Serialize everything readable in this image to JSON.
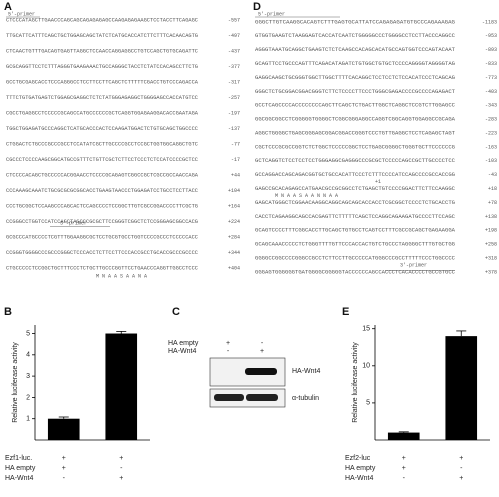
{
  "panel_a": {
    "label": "A",
    "primer_top": "5'-primer",
    "primer_mid": "3'-primer",
    "aa": "M  N  A  A  S  A  A  N  A",
    "rows": [
      {
        "seq": "CTCCCATAGCTTGAACCCAGCAGCAGAGAGAGCCAAGAGAGAAGCTCCTACCTTCAGAGC",
        "pos": "-557"
      },
      {
        "seq": "TTGCATTCATTTCAGCTGCTGGAGCAGCTATCTCATGCACCATCTTCTTTCACAACAGTG",
        "pos": "-497"
      },
      {
        "seq": "CTCAACTGTTTGACAGTGAGTTAGGCTCCAACCAGGAGGCCTGTCCAGCTGTGCAGATTC",
        "pos": "-437"
      },
      {
        "seq": "GCGCAGGTTCCTCTTTAGGGTGAAGAAACTGCCAGGGCTACCTCTATCCACAGCCTTCTG",
        "pos": "-377"
      },
      {
        "seq": "GCCTGCGAGCACCTCCCAGGGCCTCCTTCCTTCAGCTCTTTTTCGACCTGTCCCAGACCA",
        "pos": "-317"
      },
      {
        "seq": "TTTCTGTGATGAGTCTGGAGCGAGGCTCTCTATGGGAGAGGCTGGGGAGCCACCATGTCC",
        "pos": "-257"
      },
      {
        "seq": "CGCCTGAGGCCTCCCCCGCAGCCATGCCCCCCGCTCAGGTGGAGAAGGACACCGAATAGA",
        "pos": "-197"
      },
      {
        "seq": "TGGCTGGAGATGCCCAGGCTCATGCACCCACTCCAAGATGGACTCTGTGCAGCTGGCCCC",
        "pos": "-137"
      },
      {
        "seq": "CTGGACTCTGCCCGCCCGCCTCCATATCGCTTGCCCCGCCTCCGCTGGTGGCAGGCTGTC",
        "pos": "-77"
      },
      {
        "seq": "CGCCCTCCCCAAGCGGCATGCCGTTTCTGTTCGCTCTTCCTCCCTCTCCATCCCCGCTCC",
        "pos": "-17"
      },
      {
        "seq": "CTCCCCACAGCTGCCCCCACGGAACCTCCCCGCAGAGTCGGCCGCTCGCCGCCAACCAGA",
        "pos": "+44"
      },
      {
        "seq": "CCCAAAGCAAATCTGCGCGCGCGGCACCTGAAGTAACCCTGGAGATCCTGCCTCCTTACC",
        "pos": "+104"
      },
      {
        "seq": "CCCTGCGGCTCCAAGCCCAGCACTCCAGCCCCTCCGGCTTGTCGCCGGACCCCTTCGCTG",
        "pos": "+164"
      },
      {
        "seq": "CCGGGCCTGGTCCATCCAGCTAGCCCGCGCTTCCGGGTCGGCTCTCCGGGAGCGGCCACG",
        "pos": "+224"
      },
      {
        "seq": "GCGCCCATGCCCCTCGTTTGGAAGGCGCTCCTGCGTGCCTGGTCCCCGCCCTCCCCCACC",
        "pos": "+284"
      },
      {
        "seq": "CCGGGTGGGGCCCGCCCGGGCTCCCACCTCTTCCTTCCCACCGCCTGCACCGCCCGCCCC",
        "pos": "+344"
      },
      {
        "seq": "CTGCCCCCTCCGGCTGCTTTCCCTCTGCTTGCCCGGTTCCTGAACCCAGGTTGGCCTCCC",
        "pos": "+404"
      }
    ]
  },
  "panel_d": {
    "label": "D",
    "primer_top": "5'-primer",
    "primer_bottom": "3'-primer",
    "start": "+1",
    "aa": "M  N  A  A  S  A  A  N  N  A  A",
    "rows": [
      {
        "seq": "GGGCTTGTCAAGGCACAGTCTTTGAGTGCATTATCCAGAGAGATGTGCCCAGAAAGAG",
        "pos": "-1183"
      },
      {
        "seq": "GTGGTGAAGTCTAAGGAGTCACCATCAATCTGGGGGCCCTGGGGCCTCCTTACCCAGGCC",
        "pos": "-953"
      },
      {
        "seq": "AGGGTAAATGCAGGCTGAAGTCTCTCAAGCCACAGCACATGCCAGTGGTCCCAGTACAAT",
        "pos": "-893"
      },
      {
        "seq": "GCAGTTCCTGCCCAGTTTCAGACATAGATCTGTGGCTGTGCTCCCCAGGGGTAGGGGTAG",
        "pos": "-833"
      },
      {
        "seq": "GAGGCAAGCTGCGGGTGGCTTGGCTTTTCACAGGCTCCTCCTCTCCACATCCCTCAGCAG",
        "pos": "-773"
      },
      {
        "seq": "GGGCTCTGCGGACGGACGGGTCTTCTCCCCTTCCCTGGGCGAGACCCCGCCCCAGAGACT",
        "pos": "-403"
      },
      {
        "seq": "GCCTCAGCCCCACCCCCCCCAGCTTCAGCTCTGACTTGGCTCAGGCTCCGTCTTGGAGCC",
        "pos": "-343"
      },
      {
        "seq": "GGCGGCGGCCTCGGGGGTGGGGCTCGGCGGGAGGCCAGGTCGGCAGGTGGAGGCCGCAGA",
        "pos": "-283"
      },
      {
        "seq": "AGGCTGGGGCTGAGCGGGAGCGGACGGACCGGGTCCCTGTTGAGGCTCCTCAGAGCTAGT",
        "pos": "-223"
      },
      {
        "seq": "CGCTCCCGCGCCGGTCTCTGGCTCCCCCGGCTCCTGAGCGGGGCTGGGTGCTTCCCCCCG",
        "pos": "-163"
      },
      {
        "seq": "GCTCAGGTCTCCTCCTCCTGGGAGGCGAGGGCCCGCGCTCCCCCAGCCGCTTGCCCCTCC",
        "pos": "-103"
      },
      {
        "seq": "GCCAGGACCAGCAGACGGTGCTGCCACATTCCCTCTTTCCCCATCCAGCCCCGCCACCGG",
        "pos": "-43"
      },
      {
        "seq": "GAGCCGCACAGAGCCATGAACGCCGCGGCCTCTGAGCTGTCCCCGGACTTCTTCCAAGGC",
        "pos": "+18"
      },
      {
        "seq": "GAGCATGGGCTCGGAACAAGGCAGGCAGCAGCACCACCTCGCGGCTCCCCTCTGCACCTG",
        "pos": "+78"
      },
      {
        "seq": "CACCTCAGAAGGCAGCCACGAGTTCTTTTTCAGCTCCAGGCAGAAGATGCCCCTTCCAGC",
        "pos": "+138"
      },
      {
        "seq": "GCAGTCCCCTTTCGGCACCTTGCAGCTGTGCCTCAGTCCTTTCGCCGCAGCTGAGAAGGA",
        "pos": "+198"
      },
      {
        "seq": "GCAGCAAACCCCCTCTGGGTTTTGTTCCCACCACTGTCTGCCCTAGGGGCTTTGTGCTGG",
        "pos": "+258"
      },
      {
        "seq": "GGGGCCGGCCCCGGGCCGCCTCTTCCTTGCCCCCATGGGCCCGCCTTTTTCCCTGGCCCC",
        "pos": "+318"
      },
      {
        "seq": "GGGAGTGGGGGGTGATGGGGCGGGGGTACCCCCCAGCCACCCTCACACCCCTGCCGTGCC",
        "pos": "+378"
      }
    ]
  },
  "chart_data": [
    {
      "type": "bar",
      "label": "B",
      "ylabel": "Relative luciferase activity",
      "values": [
        1,
        5
      ],
      "errors": [
        0.08,
        0.1
      ],
      "ylim": [
        0,
        5.4
      ],
      "yticks": [
        1,
        2,
        3,
        4,
        5
      ],
      "color": "#000000",
      "conditions": [
        {
          "name": "Ezf1-luc.",
          "signs": [
            "+",
            "+"
          ]
        },
        {
          "name": "HA empty",
          "signs": [
            "+",
            "-"
          ]
        },
        {
          "name": "HA-Wnt4",
          "signs": [
            "-",
            "+"
          ]
        }
      ]
    },
    {
      "type": "bar",
      "label": "E",
      "ylabel": "Relative luciferase activity",
      "values": [
        1,
        14
      ],
      "errors": [
        0.1,
        0.7
      ],
      "ylim": [
        0,
        15.5
      ],
      "yticks": [
        5,
        10,
        15
      ],
      "color": "#000000",
      "conditions": [
        {
          "name": "Ezf2-luc",
          "signs": [
            "+",
            "+"
          ]
        },
        {
          "name": "HA empty",
          "signs": [
            "+",
            "-"
          ]
        },
        {
          "name": "HA-Wnt4",
          "signs": [
            "-",
            "+"
          ]
        }
      ]
    }
  ],
  "blot_c": {
    "label": "C",
    "conditions": [
      {
        "name": "HA empty",
        "signs": [
          "+",
          "-"
        ]
      },
      {
        "name": "HA-Wnt4",
        "signs": [
          "-",
          "+"
        ]
      }
    ],
    "bands": [
      "HA-Wnt4",
      "α-tubulin"
    ]
  }
}
